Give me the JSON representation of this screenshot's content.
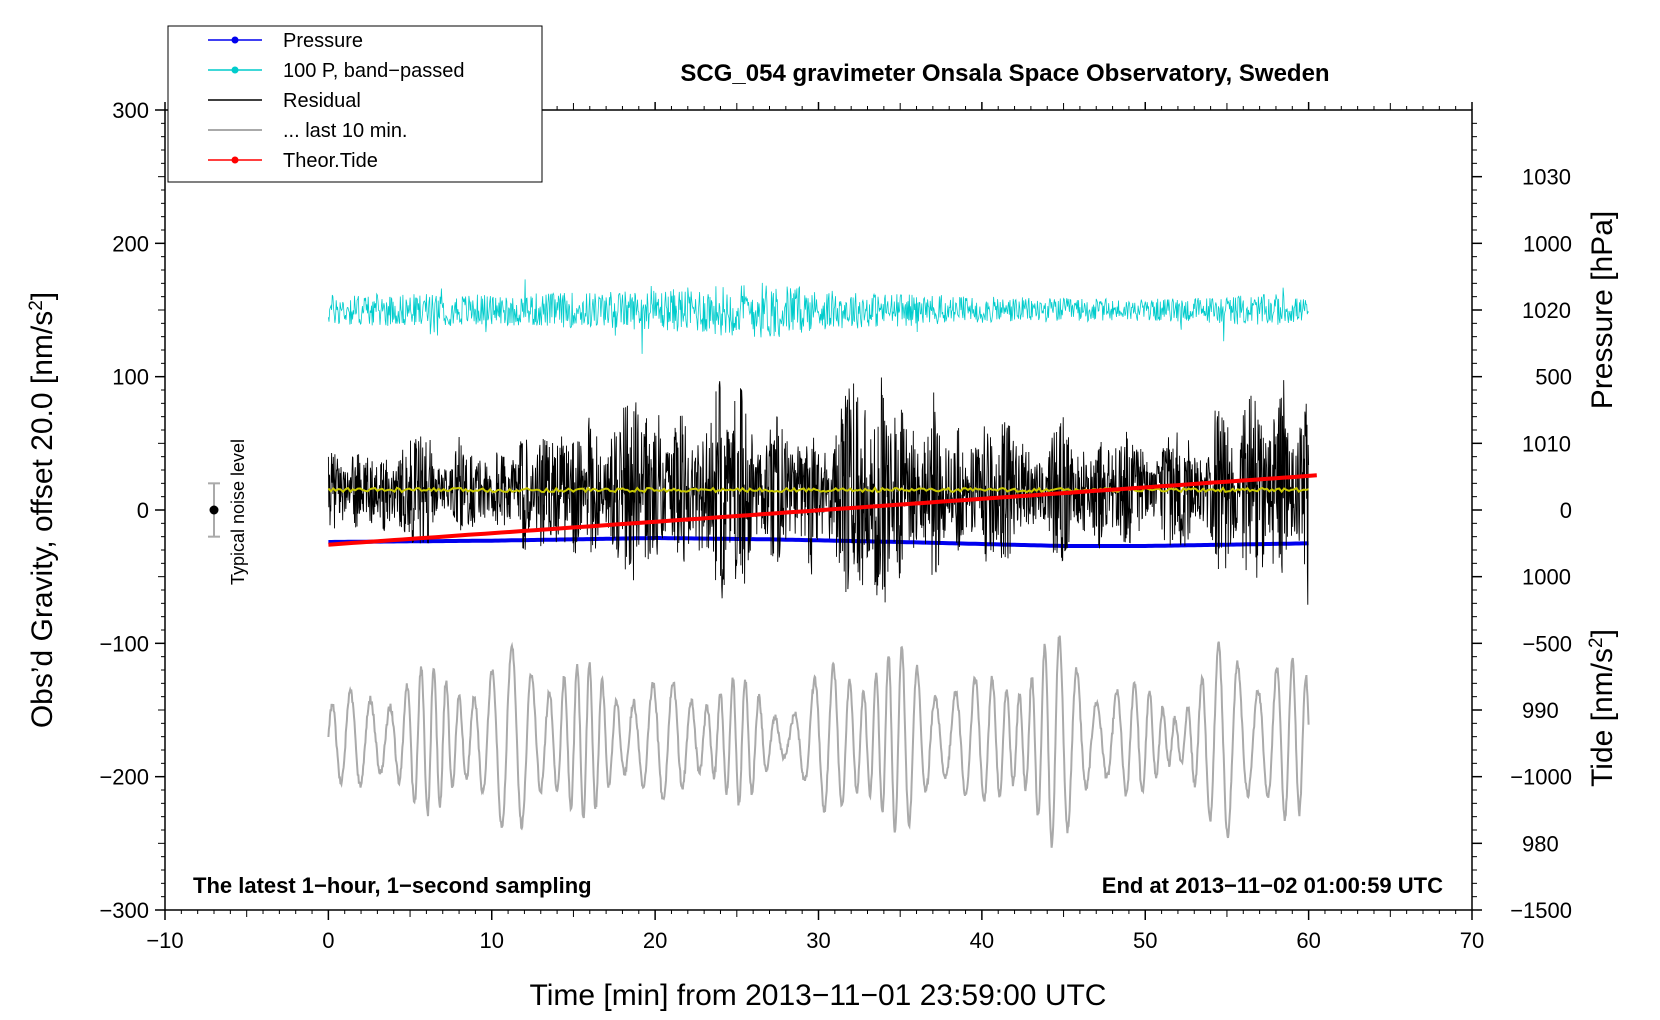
{
  "chart_data": {
    "type": "line",
    "title": "SCG_054 gravimeter Onsala Space Observatory, Sweden",
    "xlabel": "Time [min] from 2013−11−01 23:59:00 UTC",
    "ylabel_left_main": "Obs’d Gravity, offset 20.0 [nm/s",
    "ylabel_left_sup": "2",
    "ylabel_left_end": "]",
    "ylabel_right_pressure": "Pressure [hPa]",
    "ylabel_right_tide_main": "Tide [nm/s",
    "ylabel_right_tide_sup": "2",
    "ylabel_right_tide_end": "]",
    "xlim": [
      -10,
      70
    ],
    "ylim": [
      -300,
      300
    ],
    "pressure_lim": [
      975,
      1035
    ],
    "tide_lim": [
      -1500,
      1500
    ],
    "x_ticks": [
      "−10",
      "0",
      "10",
      "20",
      "30",
      "40",
      "50",
      "60",
      "70"
    ],
    "x_tick_values": [
      -10,
      0,
      10,
      20,
      30,
      40,
      50,
      60,
      70
    ],
    "y_ticks": [
      "300",
      "200",
      "100",
      "0",
      "−100",
      "−200",
      "−300"
    ],
    "y_tick_values": [
      300,
      200,
      100,
      0,
      -100,
      -200,
      -300
    ],
    "pressure_ticks": [
      "1030",
      "1020",
      "1010",
      "1000",
      "990",
      "980"
    ],
    "pressure_tick_values": [
      1030,
      1020,
      1010,
      1000,
      990,
      980
    ],
    "tide_ticks": [
      "1000",
      "500",
      "0",
      "−500",
      "−1000",
      "−1500"
    ],
    "tide_tick_values": [
      1000,
      500,
      0,
      -500,
      -1000,
      -1500
    ],
    "legend": [
      {
        "label": "Pressure",
        "color": "#0000ee",
        "marker": true
      },
      {
        "label": "100 P, band−passed",
        "color": "#00cccc",
        "marker": true
      },
      {
        "label": "Residual",
        "color": "#000000",
        "marker": false
      },
      {
        "label": "... last 10 min.",
        "color": "#aaaaaa",
        "marker": false
      },
      {
        "label": "Theor.Tide",
        "color": "#ff0000",
        "marker": true
      }
    ],
    "annotation_left": "The latest 1−hour, 1−second sampling",
    "annotation_right": "End at 2013−11−02 01:00:59 UTC",
    "noise_label": "Typical noise level",
    "noise_level": {
      "x": -7,
      "center": 0,
      "half_range": 20
    },
    "series": [
      {
        "name": "Pressure",
        "axis": "pressure",
        "x": [
          0,
          10,
          20,
          27,
          35,
          45,
          50,
          55,
          60
        ],
        "values": [
          1002.6,
          1002.7,
          1002.9,
          1002.8,
          1002.6,
          1002.3,
          1002.3,
          1002.4,
          1002.5
        ],
        "color": "#0000ee"
      },
      {
        "name": "100 P, band-passed",
        "axis": "gravity",
        "x_range": [
          0,
          60
        ],
        "center": 150,
        "amplitude_envelope": {
          "x": [
            0,
            10,
            20,
            25,
            27,
            30,
            40,
            50,
            58,
            60
          ],
          "values": [
            12,
            12,
            15,
            20,
            22,
            15,
            10,
            8,
            12,
            8
          ]
        },
        "color": "#00cccc"
      },
      {
        "name": "Residual",
        "axis": "gravity",
        "x_range": [
          0,
          60
        ],
        "center": 15,
        "amplitude_envelope": {
          "x": [
            0,
            5,
            10,
            15,
            20,
            25,
            27,
            30,
            32,
            35,
            40,
            45,
            50,
            55,
            58,
            60
          ],
          "values": [
            25,
            35,
            35,
            50,
            60,
            70,
            50,
            60,
            85,
            70,
            55,
            45,
            40,
            60,
            75,
            85
          ]
        },
        "color": "#000000"
      },
      {
        "name": "Residual smooth",
        "axis": "gravity",
        "x_range": [
          0,
          60
        ],
        "center": 15,
        "color": "#c8c800"
      },
      {
        "name": "... last 10 min.",
        "axis": "gravity",
        "x_range": [
          0,
          60
        ],
        "center": -172,
        "amplitude_envelope": {
          "x": [
            0,
            5,
            10,
            12,
            15,
            20,
            25,
            28,
            32,
            35,
            40,
            44,
            47,
            52,
            55,
            58,
            60
          ],
          "values": [
            30,
            55,
            60,
            80,
            60,
            45,
            50,
            25,
            75,
            70,
            45,
            85,
            55,
            30,
            80,
            70,
            50
          ]
        },
        "color": "#aaaaaa"
      },
      {
        "name": "Theor.Tide",
        "axis": "tide",
        "x": [
          0,
          60.5
        ],
        "values": [
          -130,
          130
        ],
        "color": "#ff0000"
      }
    ]
  }
}
